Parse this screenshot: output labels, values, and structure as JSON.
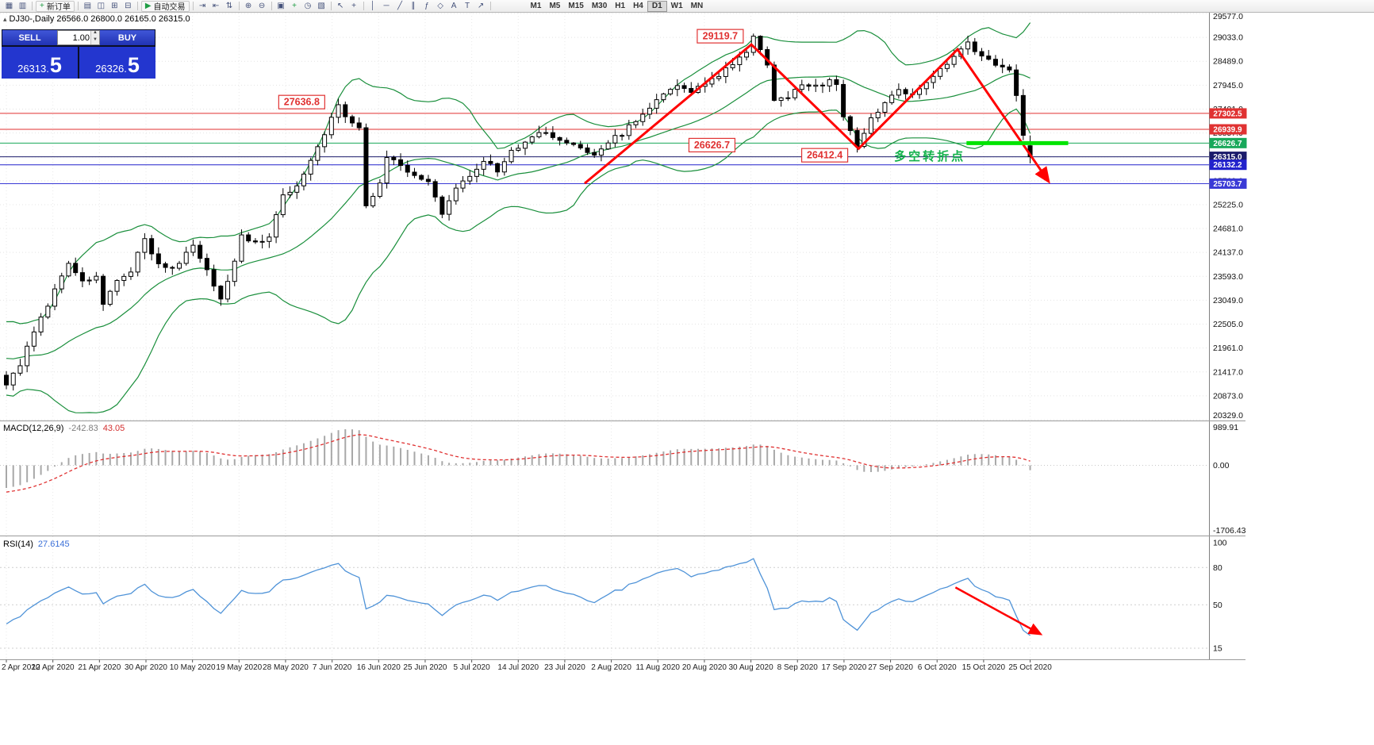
{
  "toolbar": {
    "items": [
      {
        "type": "icon",
        "name": "new-chart-icon",
        "glyph": "▦"
      },
      {
        "type": "icon",
        "name": "profiles-icon",
        "glyph": "▥"
      },
      {
        "type": "sep"
      },
      {
        "type": "button",
        "name": "new-order-button",
        "glyph": "+",
        "glyph_color": "#1f9d44",
        "label": "新订单"
      },
      {
        "type": "sep"
      },
      {
        "type": "icon",
        "name": "market-watch-icon",
        "glyph": "▤"
      },
      {
        "type": "icon",
        "name": "data-window-icon",
        "glyph": "◫"
      },
      {
        "type": "icon",
        "name": "navigator-icon",
        "glyph": "⊞"
      },
      {
        "type": "icon",
        "name": "terminal-icon",
        "glyph": "⊟"
      },
      {
        "type": "sep"
      },
      {
        "type": "button",
        "name": "autotrading-button",
        "glyph": "▶",
        "glyph_color": "#1f9d44",
        "label": "自动交易"
      },
      {
        "type": "sep"
      },
      {
        "type": "icon",
        "name": "autoscroll-icon",
        "glyph": "⇥"
      },
      {
        "type": "icon",
        "name": "chart-shift-icon",
        "glyph": "⇤"
      },
      {
        "type": "icon",
        "name": "scale-fix-icon",
        "glyph": "⇅"
      },
      {
        "type": "sep"
      },
      {
        "type": "icon",
        "name": "zoom-in-icon",
        "glyph": "⊕"
      },
      {
        "type": "icon",
        "name": "zoom-out-icon",
        "glyph": "⊖"
      },
      {
        "type": "sep"
      },
      {
        "type": "icon",
        "name": "tile-windows-icon",
        "glyph": "▣"
      },
      {
        "type": "icon",
        "name": "indicators-icon",
        "glyph": "+",
        "glyph_color": "#1f9d44"
      },
      {
        "type": "icon",
        "name": "periods-icon",
        "glyph": "◷"
      },
      {
        "type": "icon",
        "name": "template-icon",
        "glyph": "▧"
      },
      {
        "type": "sep"
      },
      {
        "type": "icon",
        "name": "cursor-icon",
        "glyph": "↖"
      },
      {
        "type": "icon",
        "name": "crosshair-icon",
        "glyph": "+"
      },
      {
        "type": "sep"
      },
      {
        "type": "icon",
        "name": "vertical-line-icon",
        "glyph": "│"
      },
      {
        "type": "icon",
        "name": "horizontal-line-icon",
        "glyph": "─"
      },
      {
        "type": "icon",
        "name": "trendline-icon",
        "glyph": "╱"
      },
      {
        "type": "icon",
        "name": "channel-icon",
        "glyph": "∥"
      },
      {
        "type": "icon",
        "name": "fibonacci-icon",
        "glyph": "ƒ"
      },
      {
        "type": "icon",
        "name": "shapes-icon",
        "glyph": "◇"
      },
      {
        "type": "icon",
        "name": "text-icon",
        "glyph": "A"
      },
      {
        "type": "icon",
        "name": "label-icon",
        "glyph": "T"
      },
      {
        "type": "icon",
        "name": "arrow-tool-icon",
        "glyph": "↗"
      },
      {
        "type": "sep"
      }
    ],
    "timeframes": {
      "items": [
        "M1",
        "M5",
        "M15",
        "M30",
        "H1",
        "H4",
        "D1",
        "W1",
        "MN"
      ],
      "active": "D1"
    }
  },
  "chart_header": {
    "text": "DJ30-,Daily 26566.0 26800.0 26165.0 26315.0"
  },
  "trade_panel": {
    "sell_label": "SELL",
    "buy_label": "BUY",
    "volume": "1.00",
    "sell_price_head": "26313.",
    "sell_price_big": "5",
    "buy_price_head": "26326.",
    "buy_price_big": "5"
  },
  "chart_data": {
    "type": "candlestick",
    "symbol": "DJ30",
    "timeframe": "Daily",
    "x_labels": [
      "2 Apr 2020",
      "12 Apr 2020",
      "21 Apr 2020",
      "30 Apr 2020",
      "10 May 2020",
      "19 May 2020",
      "28 May 2020",
      "7 Jun 2020",
      "16 Jun 2020",
      "25 Jun 2020",
      "5 Jul 2020",
      "14 Jul 2020",
      "23 Jul 2020",
      "2 Aug 2020",
      "11 Aug 2020",
      "20 Aug 2020",
      "30 Aug 2020",
      "8 Sep 2020",
      "17 Sep 2020",
      "27 Sep 2020",
      "6 Oct 2020",
      "15 Oct 2020",
      "25 Oct 2020"
    ],
    "y_axis": {
      "min": 20329.0,
      "max": 29577.0,
      "step": 544.0
    },
    "series": {
      "count": 149,
      "pre_count": 40,
      "noise": 110,
      "wick": 140,
      "anchors": [
        [
          0,
          21100
        ],
        [
          2,
          21600
        ],
        [
          4,
          22300
        ],
        [
          7,
          23300
        ],
        [
          9,
          23900
        ],
        [
          11,
          23450
        ],
        [
          13,
          23550
        ],
        [
          14,
          23000
        ],
        [
          16,
          23500
        ],
        [
          18,
          23700
        ],
        [
          20,
          24500
        ],
        [
          21,
          24100
        ],
        [
          23,
          23750
        ],
        [
          25,
          23900
        ],
        [
          27,
          24300
        ],
        [
          29,
          23700
        ],
        [
          31,
          23050
        ],
        [
          33,
          23900
        ],
        [
          34,
          24550
        ],
        [
          36,
          24350
        ],
        [
          38,
          24500
        ],
        [
          40,
          25450
        ],
        [
          42,
          25650
        ],
        [
          44,
          26250
        ],
        [
          46,
          26850
        ],
        [
          48,
          27550
        ],
        [
          49,
          27200
        ],
        [
          51,
          26950
        ],
        [
          52,
          25150
        ],
        [
          54,
          25700
        ],
        [
          55,
          26250
        ],
        [
          57,
          26150
        ],
        [
          59,
          25850
        ],
        [
          61,
          25700
        ],
        [
          63,
          25050
        ],
        [
          65,
          25650
        ],
        [
          67,
          25850
        ],
        [
          69,
          26250
        ],
        [
          71,
          26000
        ],
        [
          73,
          26450
        ],
        [
          75,
          26650
        ],
        [
          77,
          26900
        ],
        [
          79,
          26750
        ],
        [
          81,
          26650
        ],
        [
          83,
          26550
        ],
        [
          85,
          26350
        ],
        [
          87,
          26650
        ],
        [
          89,
          26850
        ],
        [
          91,
          27150
        ],
        [
          93,
          27450
        ],
        [
          95,
          27750
        ],
        [
          97,
          27950
        ],
        [
          99,
          27800
        ],
        [
          101,
          27950
        ],
        [
          103,
          28150
        ],
        [
          105,
          28450
        ],
        [
          107,
          28700
        ],
        [
          108,
          29050
        ],
        [
          110,
          28450
        ],
        [
          111,
          27600
        ],
        [
          113,
          27700
        ],
        [
          115,
          28000
        ],
        [
          117,
          27900
        ],
        [
          119,
          28050
        ],
        [
          120,
          27950
        ],
        [
          121,
          27200
        ],
        [
          123,
          26550
        ],
        [
          125,
          27200
        ],
        [
          127,
          27500
        ],
        [
          129,
          27850
        ],
        [
          131,
          27750
        ],
        [
          133,
          28050
        ],
        [
          135,
          28300
        ],
        [
          137,
          28550
        ],
        [
          139,
          28900
        ],
        [
          141,
          28600
        ],
        [
          143,
          28400
        ],
        [
          145,
          28250
        ],
        [
          146,
          27700
        ],
        [
          147,
          26850
        ],
        [
          148,
          26315
        ]
      ],
      "pre_anchors": [
        [
          -40,
          29000
        ],
        [
          -36,
          28200
        ],
        [
          -31,
          24800
        ],
        [
          -27,
          21000
        ],
        [
          -24,
          18700
        ],
        [
          -22,
          20500
        ],
        [
          -20,
          22300
        ],
        [
          -18,
          20900
        ],
        [
          -15,
          22500
        ],
        [
          -12,
          21700
        ],
        [
          -9,
          21900
        ],
        [
          -6,
          22300
        ],
        [
          -3,
          21200
        ],
        [
          -1,
          21300
        ]
      ],
      "pins": [
        {
          "i": 48,
          "v": {
            "h": 27636.8
          }
        },
        {
          "i": 108,
          "v": {
            "h": 29119.7
          }
        },
        {
          "i": 123,
          "v": {
            "l": 26412.4
          }
        },
        {
          "i": 148,
          "v": {
            "o": 26566.0,
            "h": 26800.0,
            "l": 26165.0,
            "c": 26315.0
          }
        }
      ]
    },
    "bollinger": {
      "period": 20,
      "deviation": 2,
      "color": "#1a8f3c"
    },
    "horizontal_lines": [
      {
        "price": 27302.5,
        "color": "#e03232"
      },
      {
        "price": 26939.9,
        "color": "#e03232"
      },
      {
        "price": 26626.7,
        "color": "#18a85a"
      },
      {
        "price": 26315.0,
        "color": "#1b1b6b"
      },
      {
        "price": 26132.2,
        "color": "#2222cc"
      },
      {
        "price": 25703.7,
        "color": "#3a3ad6"
      }
    ],
    "annotations": {
      "trend_arrow": {
        "color": "#ff0000",
        "width": 3,
        "points": [
          [
            83.6,
            25710
          ],
          [
            107.7,
            28870
          ],
          [
            123.2,
            26500
          ],
          [
            137.5,
            28760
          ],
          [
            150.5,
            25790
          ]
        ]
      },
      "labels": [
        {
          "text": "27636.8",
          "i": 42.7,
          "price": 27560
        },
        {
          "text": "29119.7",
          "i": 103.2,
          "price": 29060
        },
        {
          "text": "26626.7",
          "i": 102.0,
          "price": 26580
        },
        {
          "text": "26412.4",
          "i": 118.3,
          "price": 26350
        }
      ],
      "note": {
        "text": "多空转折点",
        "i": 133.5,
        "price": 26330,
        "color": "#13b24b"
      },
      "support_bar": {
        "i1": 138.8,
        "i2": 153.5,
        "price": 26626.7,
        "color": "#00e400",
        "width": 5
      }
    },
    "macd": {
      "label": "MACD(12,26,9)",
      "value_main": "-242.83",
      "value_signal": "43.05",
      "scale_max": 989.91,
      "scale_min": -1706.43,
      "zero_label": "0.00",
      "histogram_color": "#a8a8a8",
      "signal_color": "#e03232"
    },
    "rsi": {
      "label": "RSI(14)",
      "value": "27.6145",
      "levels": [
        80,
        50,
        15
      ],
      "scale_top_label": "100",
      "line_color": "#4f93d8",
      "arrow": {
        "color": "#ff0000",
        "points": [
          [
            137.2,
            64
          ],
          [
            149.3,
            27
          ]
        ]
      }
    }
  }
}
